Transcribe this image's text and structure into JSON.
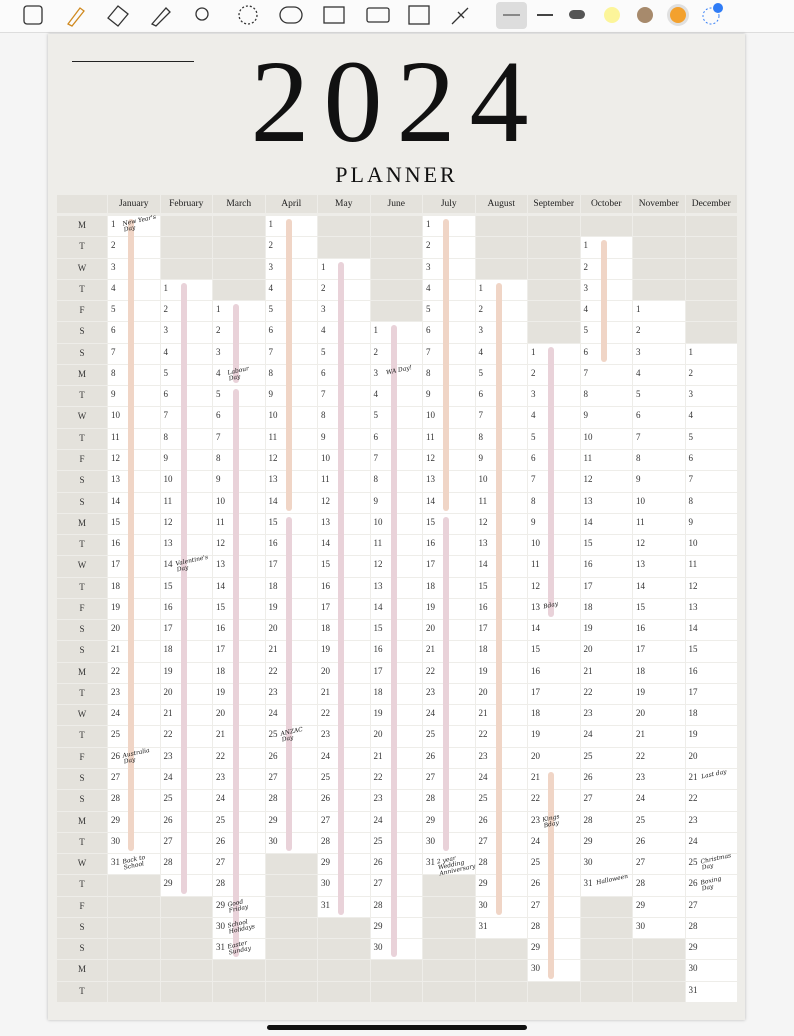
{
  "title": "2024",
  "subtitle": "PLANNER",
  "weekdays": [
    "M",
    "T",
    "W",
    "T",
    "F",
    "S",
    "S",
    "M",
    "T",
    "W",
    "T",
    "F",
    "S",
    "S",
    "M",
    "T",
    "W",
    "T",
    "F",
    "S",
    "S",
    "M",
    "T",
    "W",
    "T",
    "F",
    "S",
    "S",
    "M",
    "T",
    "W",
    "T",
    "F",
    "S",
    "S",
    "M",
    "T"
  ],
  "months": [
    {
      "name": "January",
      "days": [
        1,
        2,
        3,
        4,
        5,
        6,
        7,
        8,
        9,
        10,
        11,
        12,
        13,
        14,
        15,
        16,
        17,
        18,
        19,
        20,
        21,
        22,
        23,
        24,
        25,
        26,
        27,
        28,
        29,
        30,
        31,
        null,
        null,
        null,
        null,
        null,
        null
      ],
      "notes": {
        "1": "New Year's Day",
        "26": "Australia Day",
        "31": "Back to School"
      }
    },
    {
      "name": "February",
      "days": [
        null,
        null,
        null,
        1,
        2,
        3,
        4,
        5,
        6,
        7,
        8,
        9,
        10,
        11,
        12,
        13,
        14,
        15,
        16,
        17,
        18,
        19,
        20,
        21,
        22,
        23,
        24,
        25,
        26,
        27,
        28,
        29,
        null,
        null,
        null,
        null,
        null
      ],
      "notes": {
        "14": "Valentine's Day"
      }
    },
    {
      "name": "March",
      "days": [
        null,
        null,
        null,
        null,
        1,
        2,
        3,
        4,
        5,
        6,
        7,
        8,
        9,
        10,
        11,
        12,
        13,
        14,
        15,
        16,
        17,
        18,
        19,
        20,
        21,
        22,
        23,
        24,
        25,
        26,
        27,
        28,
        29,
        30,
        31,
        null,
        null
      ],
      "notes": {
        "4": "Labour Day",
        "29": "Good Friday",
        "30": "School Holidays",
        "31": "Easter Sunday"
      }
    },
    {
      "name": "April",
      "days": [
        1,
        2,
        3,
        4,
        5,
        6,
        7,
        8,
        9,
        10,
        11,
        12,
        13,
        14,
        15,
        16,
        17,
        18,
        19,
        20,
        21,
        22,
        23,
        24,
        25,
        26,
        27,
        28,
        29,
        30,
        null,
        null,
        null,
        null,
        null,
        null,
        null
      ],
      "notes": {
        "25": "ANZAC Day"
      }
    },
    {
      "name": "May",
      "days": [
        null,
        null,
        1,
        2,
        3,
        4,
        5,
        6,
        7,
        8,
        9,
        10,
        11,
        12,
        13,
        14,
        15,
        16,
        17,
        18,
        19,
        20,
        21,
        22,
        23,
        24,
        25,
        26,
        27,
        28,
        29,
        30,
        31,
        null,
        null,
        null,
        null
      ],
      "notes": {}
    },
    {
      "name": "June",
      "days": [
        null,
        null,
        null,
        null,
        null,
        1,
        2,
        3,
        4,
        5,
        6,
        7,
        8,
        9,
        10,
        11,
        12,
        13,
        14,
        15,
        16,
        17,
        18,
        19,
        20,
        21,
        22,
        23,
        24,
        25,
        26,
        27,
        28,
        29,
        30,
        null,
        null
      ],
      "notes": {
        "3": "WA Day!"
      }
    },
    {
      "name": "July",
      "days": [
        1,
        2,
        3,
        4,
        5,
        6,
        7,
        8,
        9,
        10,
        11,
        12,
        13,
        14,
        15,
        16,
        17,
        18,
        19,
        20,
        21,
        22,
        23,
        24,
        25,
        26,
        27,
        28,
        29,
        30,
        31,
        null,
        null,
        null,
        null,
        null,
        null
      ],
      "notes": {
        "31": "2 year Wedding Anniversary"
      }
    },
    {
      "name": "August",
      "days": [
        null,
        null,
        null,
        1,
        2,
        3,
        4,
        5,
        6,
        7,
        8,
        9,
        10,
        11,
        12,
        13,
        14,
        15,
        16,
        17,
        18,
        19,
        20,
        21,
        22,
        23,
        24,
        25,
        26,
        27,
        28,
        29,
        30,
        31,
        null,
        null,
        null
      ],
      "notes": {}
    },
    {
      "name": "September",
      "days": [
        null,
        null,
        null,
        null,
        null,
        null,
        1,
        2,
        3,
        4,
        5,
        6,
        7,
        8,
        9,
        10,
        11,
        12,
        13,
        14,
        15,
        16,
        17,
        18,
        19,
        20,
        21,
        22,
        23,
        24,
        25,
        26,
        27,
        28,
        29,
        30,
        null
      ],
      "notes": {
        "13": "Bday",
        "23": "Kings Bday"
      }
    },
    {
      "name": "October",
      "days": [
        null,
        1,
        2,
        3,
        4,
        5,
        6,
        7,
        8,
        9,
        10,
        11,
        12,
        13,
        14,
        15,
        16,
        17,
        18,
        19,
        20,
        21,
        22,
        23,
        24,
        25,
        26,
        27,
        28,
        29,
        30,
        31,
        null,
        null,
        null,
        null,
        null
      ],
      "notes": {
        "31": "Halloween"
      }
    },
    {
      "name": "November",
      "days": [
        null,
        null,
        null,
        null,
        1,
        2,
        3,
        4,
        5,
        6,
        7,
        8,
        9,
        10,
        11,
        12,
        13,
        14,
        15,
        16,
        17,
        18,
        19,
        20,
        21,
        22,
        23,
        24,
        25,
        26,
        27,
        28,
        29,
        30,
        null,
        null,
        null
      ],
      "notes": {}
    },
    {
      "name": "December",
      "days": [
        null,
        null,
        null,
        null,
        null,
        null,
        1,
        2,
        3,
        4,
        5,
        6,
        7,
        8,
        9,
        10,
        11,
        12,
        13,
        14,
        15,
        16,
        17,
        18,
        19,
        20,
        21,
        22,
        23,
        24,
        25,
        26,
        27,
        28,
        29,
        30,
        31
      ],
      "notes": {
        "21": "Last day",
        "25": "Christmas Day",
        "26": "Boxing Day"
      }
    }
  ]
}
